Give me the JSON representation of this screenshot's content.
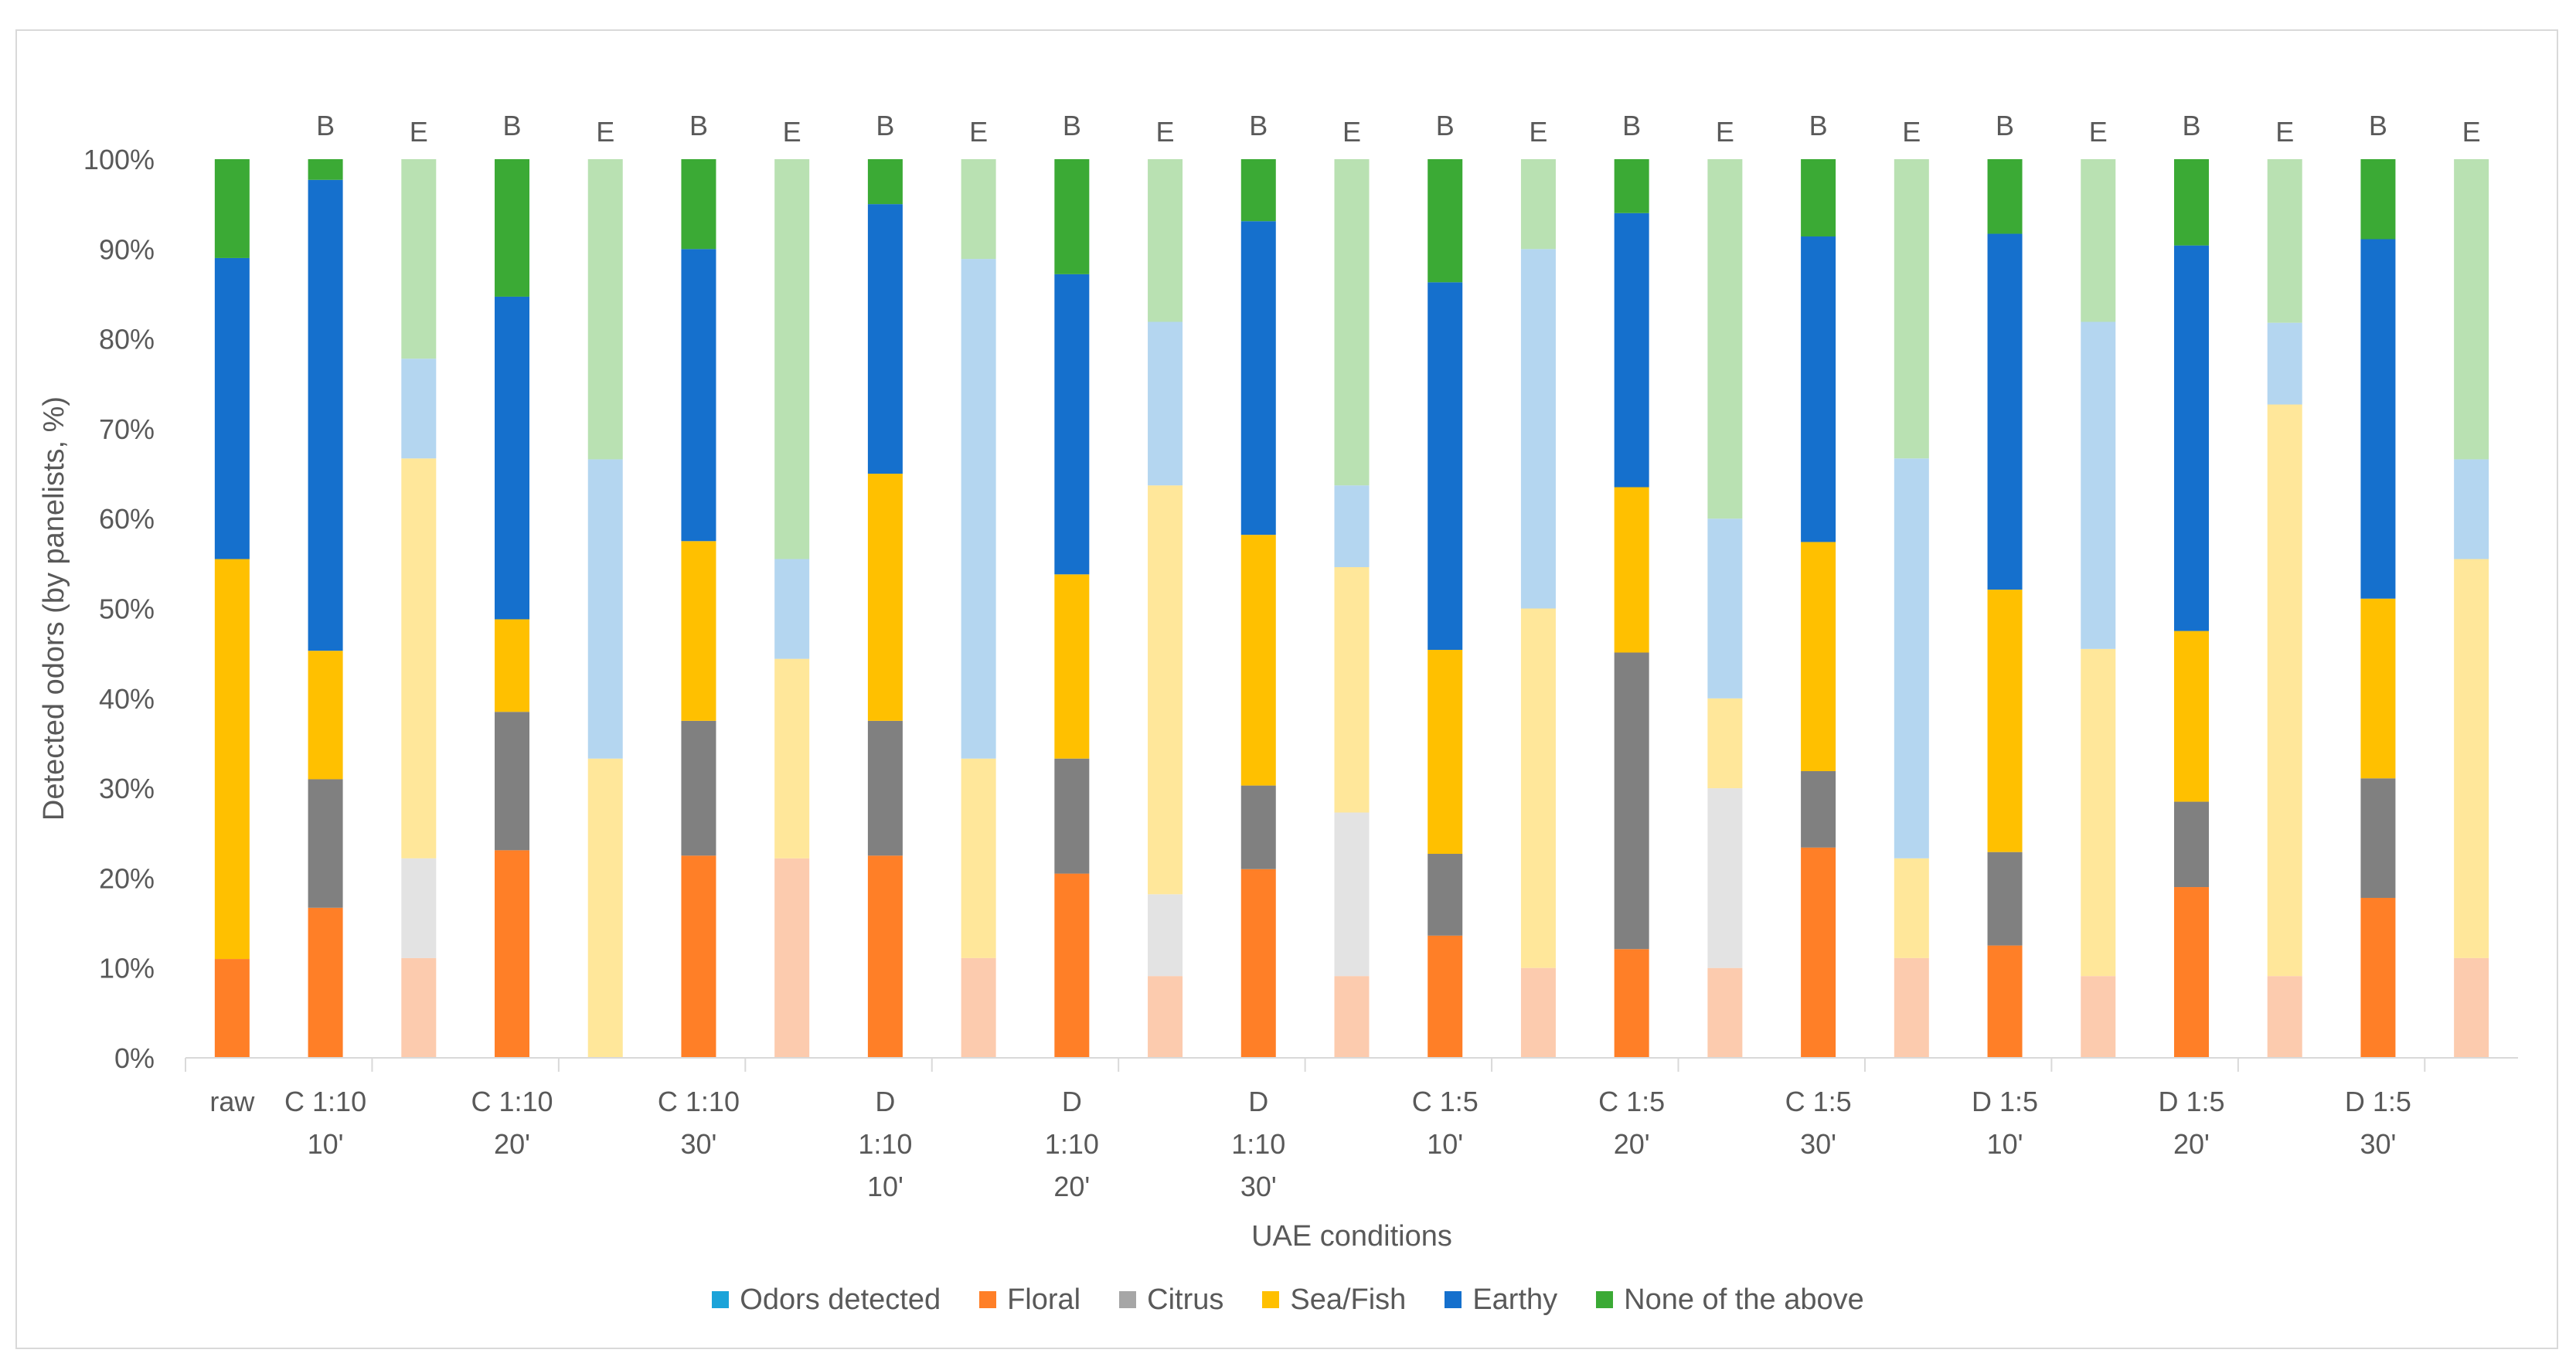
{
  "chart_data": {
    "type": "bar",
    "stacked": true,
    "ylabel": "Detected odors (by panelists, %)",
    "xlabel": "UAE conditions",
    "ylim": [
      0,
      100
    ],
    "yticks": [
      "0%",
      "10%",
      "20%",
      "30%",
      "40%",
      "50%",
      "60%",
      "70%",
      "80%",
      "90%",
      "100%"
    ],
    "grid": false,
    "legend_position": "bottom",
    "categories": [
      [
        "raw"
      ],
      [
        "C 1:10",
        "10'"
      ],
      [
        "C 1:10",
        "20'"
      ],
      [
        "C 1:10",
        "30'"
      ],
      [
        "D",
        "1:10",
        "10'"
      ],
      [
        "D",
        "1:10",
        "20'"
      ],
      [
        "D",
        "1:10",
        "30'"
      ],
      [
        "C 1:5",
        "10'"
      ],
      [
        "C 1:5",
        "20'"
      ],
      [
        "C 1:5",
        "30'"
      ],
      [
        "D 1:5",
        "10'"
      ],
      [
        "D 1:5",
        "20'"
      ],
      [
        "D 1:5",
        "30'"
      ]
    ],
    "bar_labels": [
      "",
      "B",
      "E",
      "B",
      "E",
      "B",
      "E",
      "B",
      "E",
      "B",
      "E",
      "B",
      "E",
      "B",
      "E",
      "B",
      "E",
      "B",
      "E",
      "B",
      "E",
      "B",
      "E",
      "B",
      "E"
    ],
    "bars": [
      [
        11,
        0,
        44.5,
        33.5,
        11
      ],
      [
        16.7,
        14.3,
        14.3,
        52.4,
        2.3
      ],
      [
        11.1,
        11.1,
        44.5,
        11.1,
        22.2
      ],
      [
        23.1,
        15.4,
        10.3,
        35.9,
        15.3
      ],
      [
        0,
        0,
        33.3,
        33.3,
        33.4
      ],
      [
        22.5,
        15,
        20,
        32.5,
        10
      ],
      [
        22.2,
        0,
        22.2,
        11.1,
        44.5
      ],
      [
        22.5,
        15,
        27.5,
        30,
        5
      ],
      [
        11.1,
        0,
        22.2,
        55.6,
        11.1
      ],
      [
        20.5,
        12.8,
        20.5,
        33.4,
        12.8
      ],
      [
        9.1,
        9.1,
        45.5,
        18.2,
        18.1
      ],
      [
        21,
        9.3,
        27.9,
        34.9,
        6.9
      ],
      [
        9.1,
        18.2,
        27.3,
        9.1,
        36.3
      ],
      [
        13.6,
        9.1,
        22.7,
        40.9,
        13.7
      ],
      [
        10,
        0,
        40,
        40,
        10
      ],
      [
        12.1,
        33,
        18.4,
        30.5,
        6
      ],
      [
        10,
        20,
        10,
        20,
        40
      ],
      [
        23.4,
        8.5,
        25.5,
        34,
        8.6
      ],
      [
        11.1,
        0,
        11.1,
        44.5,
        33.3
      ],
      [
        12.5,
        10.4,
        29.2,
        39.6,
        8.3
      ],
      [
        9.1,
        0,
        36.4,
        36.4,
        18.1
      ],
      [
        19,
        9.5,
        19,
        42.9,
        9.6
      ],
      [
        9.1,
        0,
        63.6,
        9.1,
        18.2
      ],
      [
        17.8,
        13.3,
        20,
        40,
        8.9
      ],
      [
        11.1,
        0,
        44.4,
        11.1,
        33.4
      ]
    ],
    "series": [
      {
        "name": "Floral",
        "color": "#FF7F27",
        "light_color": "#FCCBAE"
      },
      {
        "name": "Citrus",
        "color": "#808080",
        "light_color": "#E3E3E3"
      },
      {
        "name": "Sea/Fish",
        "color": "#FFC000",
        "light_color": "#FFE79A"
      },
      {
        "name": "Earthy",
        "color": "#1570CD",
        "light_color": "#B4D6F0"
      },
      {
        "name": "None of the above",
        "color": "#3BAA35",
        "light_color": "#B9E1B2"
      }
    ],
    "legend": [
      {
        "name": "Odors detected",
        "color": "#1AA3D9"
      },
      {
        "name": "Floral",
        "color": "#FF7F27"
      },
      {
        "name": "Citrus",
        "color": "#A6A6A6"
      },
      {
        "name": "Sea/Fish",
        "color": "#FFC000"
      },
      {
        "name": "Earthy",
        "color": "#1570CD"
      },
      {
        "name": "None of the above",
        "color": "#3BAA35"
      }
    ]
  }
}
